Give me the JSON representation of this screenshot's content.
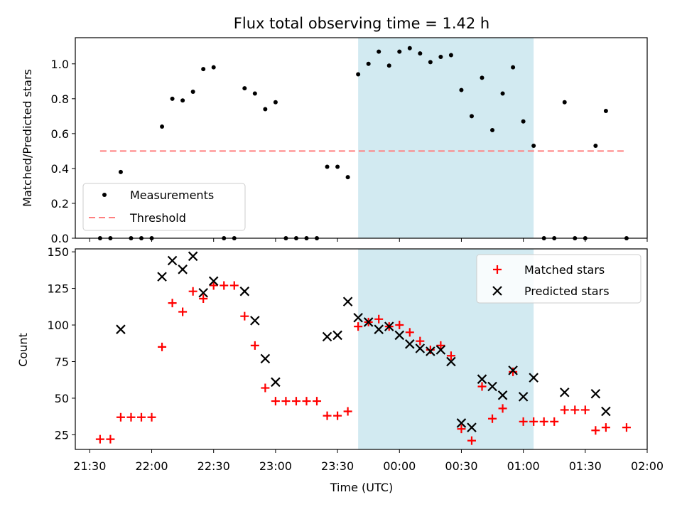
{
  "chart_data": [
    {
      "type": "scatter",
      "title": "Flux total observing time = 1.42 h",
      "xlabel": "",
      "ylabel": "Matched/Predicted stars",
      "xlim": [
        "21:23",
        "02:00"
      ],
      "ylim": [
        0,
        1.15
      ],
      "yticks": [
        "0.0",
        "0.2",
        "0.4",
        "0.6",
        "0.8",
        "1.0"
      ],
      "shaded_interval": [
        "23:40",
        "01:05"
      ],
      "shade_color": "#add8e6",
      "threshold": {
        "name": "Threshold",
        "value": 0.5,
        "x_range": [
          "21:35",
          "01:50"
        ],
        "color": "#ff7f7f"
      },
      "series": [
        {
          "name": "Measurements",
          "color": "#000000",
          "points": [
            [
              "21:35",
              0.0
            ],
            [
              "21:40",
              0.0
            ],
            [
              "21:45",
              0.38
            ],
            [
              "21:50",
              0.0
            ],
            [
              "21:55",
              0.0
            ],
            [
              "22:00",
              0.0
            ],
            [
              "22:05",
              0.64
            ],
            [
              "22:10",
              0.8
            ],
            [
              "22:15",
              0.79
            ],
            [
              "22:20",
              0.84
            ],
            [
              "22:25",
              0.97
            ],
            [
              "22:30",
              0.98
            ],
            [
              "22:35",
              0.0
            ],
            [
              "22:40",
              0.0
            ],
            [
              "22:45",
              0.86
            ],
            [
              "22:50",
              0.83
            ],
            [
              "22:55",
              0.74
            ],
            [
              "23:00",
              0.78
            ],
            [
              "23:05",
              0.0
            ],
            [
              "23:10",
              0.0
            ],
            [
              "23:15",
              0.0
            ],
            [
              "23:20",
              0.0
            ],
            [
              "23:25",
              0.41
            ],
            [
              "23:30",
              0.41
            ],
            [
              "23:35",
              0.35
            ],
            [
              "23:40",
              0.94
            ],
            [
              "23:45",
              1.0
            ],
            [
              "23:50",
              1.07
            ],
            [
              "23:55",
              0.99
            ],
            [
              "00:00",
              1.07
            ],
            [
              "00:05",
              1.09
            ],
            [
              "00:10",
              1.06
            ],
            [
              "00:15",
              1.01
            ],
            [
              "00:20",
              1.04
            ],
            [
              "00:25",
              1.05
            ],
            [
              "00:30",
              0.85
            ],
            [
              "00:35",
              0.7
            ],
            [
              "00:40",
              0.92
            ],
            [
              "00:45",
              0.62
            ],
            [
              "00:50",
              0.83
            ],
            [
              "00:55",
              0.98
            ],
            [
              "01:00",
              0.67
            ],
            [
              "01:05",
              0.53
            ],
            [
              "01:10",
              0.0
            ],
            [
              "01:15",
              0.0
            ],
            [
              "01:20",
              0.78
            ],
            [
              "01:25",
              0.0
            ],
            [
              "01:30",
              0.0
            ],
            [
              "01:35",
              0.53
            ],
            [
              "01:40",
              0.73
            ],
            [
              "01:50",
              0.0
            ]
          ]
        }
      ],
      "legend": [
        "Measurements",
        "Threshold"
      ],
      "legend_position": "lower-left"
    },
    {
      "type": "scatter",
      "title": "",
      "xlabel": "Time (UTC)",
      "ylabel": "Count",
      "xlim": [
        "21:23",
        "02:00"
      ],
      "ylim": [
        15,
        152
      ],
      "yticks": [
        "25",
        "50",
        "75",
        "100",
        "125",
        "150"
      ],
      "xticks": [
        "21:30",
        "22:00",
        "22:30",
        "23:00",
        "23:30",
        "00:00",
        "00:30",
        "01:00",
        "01:30",
        "02:00"
      ],
      "shaded_interval": [
        "23:40",
        "01:05"
      ],
      "shade_color": "#add8e6",
      "series": [
        {
          "name": "Matched stars",
          "marker": "plus",
          "color": "#ff0000",
          "points": [
            [
              "21:35",
              22
            ],
            [
              "21:40",
              22
            ],
            [
              "21:45",
              37
            ],
            [
              "21:50",
              37
            ],
            [
              "21:55",
              37
            ],
            [
              "22:00",
              37
            ],
            [
              "22:05",
              85
            ],
            [
              "22:10",
              115
            ],
            [
              "22:15",
              109
            ],
            [
              "22:20",
              123
            ],
            [
              "22:25",
              118
            ],
            [
              "22:30",
              127
            ],
            [
              "22:35",
              127
            ],
            [
              "22:40",
              127
            ],
            [
              "22:45",
              106
            ],
            [
              "22:50",
              86
            ],
            [
              "22:55",
              57
            ],
            [
              "23:00",
              48
            ],
            [
              "23:05",
              48
            ],
            [
              "23:10",
              48
            ],
            [
              "23:15",
              48
            ],
            [
              "23:20",
              48
            ],
            [
              "23:25",
              38
            ],
            [
              "23:30",
              38
            ],
            [
              "23:35",
              41
            ],
            [
              "23:40",
              99
            ],
            [
              "23:45",
              102
            ],
            [
              "23:50",
              104
            ],
            [
              "23:55",
              99
            ],
            [
              "00:00",
              100
            ],
            [
              "00:05",
              95
            ],
            [
              "00:10",
              89
            ],
            [
              "00:15",
              83
            ],
            [
              "00:20",
              86
            ],
            [
              "00:25",
              79
            ],
            [
              "00:30",
              29
            ],
            [
              "00:35",
              21
            ],
            [
              "00:40",
              58
            ],
            [
              "00:45",
              36
            ],
            [
              "00:50",
              43
            ],
            [
              "00:55",
              68
            ],
            [
              "01:00",
              34
            ],
            [
              "01:05",
              34
            ],
            [
              "01:10",
              34
            ],
            [
              "01:15",
              34
            ],
            [
              "01:20",
              42
            ],
            [
              "01:25",
              42
            ],
            [
              "01:30",
              42
            ],
            [
              "01:35",
              28
            ],
            [
              "01:40",
              30
            ],
            [
              "01:50",
              30
            ]
          ]
        },
        {
          "name": "Predicted stars",
          "marker": "x",
          "color": "#000000",
          "points": [
            [
              "21:45",
              97
            ],
            [
              "22:05",
              133
            ],
            [
              "22:10",
              144
            ],
            [
              "22:15",
              138
            ],
            [
              "22:20",
              147
            ],
            [
              "22:25",
              122
            ],
            [
              "22:30",
              130
            ],
            [
              "22:45",
              123
            ],
            [
              "22:50",
              103
            ],
            [
              "22:55",
              77
            ],
            [
              "23:00",
              61
            ],
            [
              "23:25",
              92
            ],
            [
              "23:30",
              93
            ],
            [
              "23:35",
              116
            ],
            [
              "23:40",
              105
            ],
            [
              "23:45",
              102
            ],
            [
              "23:50",
              97
            ],
            [
              "23:55",
              99
            ],
            [
              "00:00",
              93
            ],
            [
              "00:05",
              87
            ],
            [
              "00:10",
              84
            ],
            [
              "00:15",
              82
            ],
            [
              "00:20",
              83
            ],
            [
              "00:25",
              75
            ],
            [
              "00:30",
              33
            ],
            [
              "00:35",
              30
            ],
            [
              "00:40",
              63
            ],
            [
              "00:45",
              58
            ],
            [
              "00:50",
              52
            ],
            [
              "00:55",
              69
            ],
            [
              "01:00",
              51
            ],
            [
              "01:05",
              64
            ],
            [
              "01:20",
              54
            ],
            [
              "01:35",
              53
            ],
            [
              "01:40",
              41
            ]
          ]
        }
      ],
      "legend": [
        "Matched stars",
        "Predicted stars"
      ],
      "legend_position": "upper-right"
    }
  ]
}
